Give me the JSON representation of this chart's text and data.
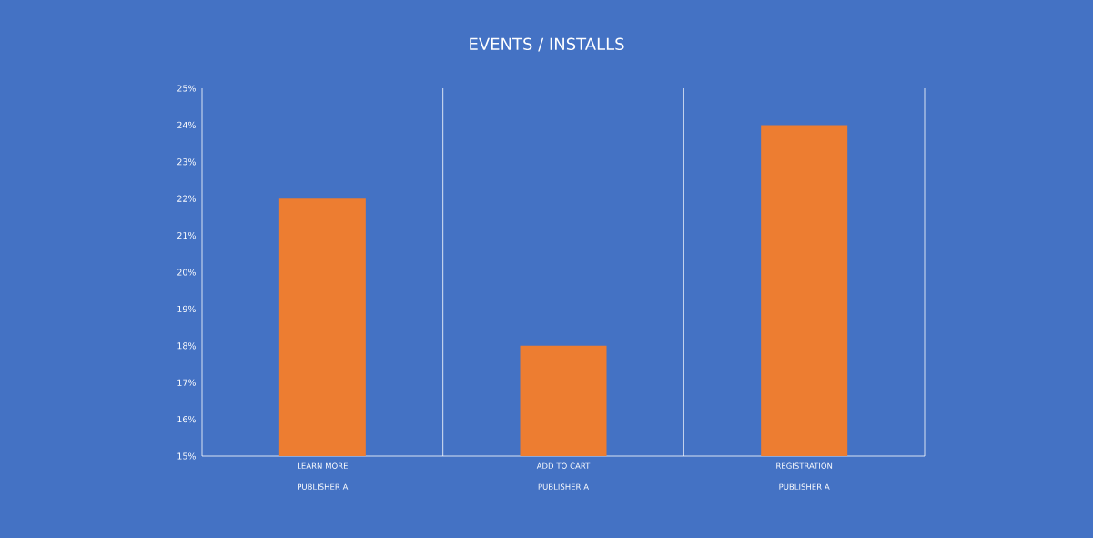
{
  "chart_data": {
    "type": "bar",
    "title": "EVENTS / INSTALLS",
    "categories": [
      "LEARN MORE PUBLISHER A",
      "ADD TO CART PUBLISHER A",
      "REGISTRATION PUBLISHER A"
    ],
    "values": [
      22,
      18,
      24
    ],
    "color": "#ed7d31",
    "ylim": [
      15,
      25
    ],
    "yticks": [
      {
        "value": 15,
        "label": "15%"
      },
      {
        "value": 16,
        "label": "16%"
      },
      {
        "value": 17,
        "label": "17%"
      },
      {
        "value": 18,
        "label": "18%"
      },
      {
        "value": 19,
        "label": "19%"
      },
      {
        "value": 20,
        "label": "20%"
      },
      {
        "value": 21,
        "label": "21%"
      },
      {
        "value": 22,
        "label": "22%"
      },
      {
        "value": 23,
        "label": "23%"
      },
      {
        "value": 24,
        "label": "24%"
      },
      {
        "value": 25,
        "label": "25%"
      }
    ],
    "grid": "x"
  }
}
